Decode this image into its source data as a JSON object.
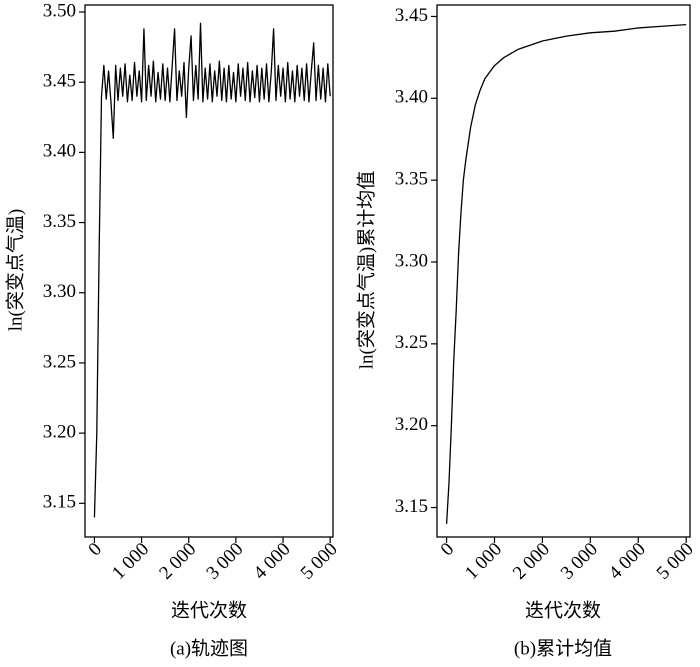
{
  "chart_data": [
    {
      "type": "line",
      "caption": "(a)轨迹图",
      "x_label": "迭代次数",
      "y_label": "ln(突变点气温)",
      "color": "#000000",
      "xlim": [
        -200,
        5060
      ],
      "ylim": [
        3.126,
        3.505
      ],
      "xticks": [
        0,
        {
          "value": 1000,
          "label": "1 000"
        },
        {
          "value": 2000,
          "label": "2 000"
        },
        {
          "value": 3000,
          "label": "3 000"
        },
        {
          "value": 4000,
          "label": "4 000"
        },
        {
          "value": 5000,
          "label": "5 000"
        }
      ],
      "yticks": [
        3.15,
        {
          "value": 3.2,
          "label": "3.20"
        },
        3.25,
        {
          "value": 3.3,
          "label": "3.30"
        },
        3.35,
        {
          "value": 3.4,
          "label": "3.40"
        },
        3.45,
        {
          "value": 3.5,
          "label": "3.50"
        }
      ],
      "x": [
        0,
        50,
        100,
        150,
        200,
        250,
        300,
        350,
        400,
        450,
        500,
        550,
        600,
        650,
        700,
        750,
        800,
        850,
        900,
        950,
        1000,
        1050,
        1100,
        1150,
        1200,
        1250,
        1300,
        1350,
        1400,
        1450,
        1500,
        1550,
        1600,
        1650,
        1700,
        1750,
        1800,
        1850,
        1900,
        1950,
        2000,
        2050,
        2100,
        2150,
        2200,
        2250,
        2300,
        2350,
        2400,
        2450,
        2500,
        2550,
        2600,
        2650,
        2700,
        2750,
        2800,
        2850,
        2900,
        2950,
        3000,
        3050,
        3100,
        3150,
        3200,
        3250,
        3300,
        3350,
        3400,
        3450,
        3500,
        3550,
        3600,
        3650,
        3700,
        3750,
        3800,
        3850,
        3900,
        3950,
        4000,
        4050,
        4100,
        4150,
        4200,
        4250,
        4300,
        4350,
        4400,
        4450,
        4500,
        4550,
        4600,
        4650,
        4700,
        4750,
        4800,
        4850,
        4900,
        4950,
        5000
      ],
      "values": [
        3.14,
        3.2,
        3.33,
        3.44,
        3.462,
        3.438,
        3.458,
        3.436,
        3.41,
        3.462,
        3.437,
        3.46,
        3.44,
        3.463,
        3.436,
        3.455,
        3.437,
        3.464,
        3.44,
        3.458,
        3.436,
        3.488,
        3.437,
        3.462,
        3.44,
        3.465,
        3.436,
        3.457,
        3.438,
        3.463,
        3.437,
        3.46,
        3.436,
        3.462,
        3.488,
        3.437,
        3.458,
        3.44,
        3.464,
        3.425,
        3.46,
        3.483,
        3.437,
        3.462,
        3.438,
        3.492,
        3.436,
        3.46,
        3.438,
        3.463,
        3.436,
        3.458,
        3.44,
        3.465,
        3.437,
        3.46,
        3.436,
        3.462,
        3.438,
        3.457,
        3.436,
        3.463,
        3.44,
        3.46,
        3.437,
        3.464,
        3.436,
        3.458,
        3.439,
        3.462,
        3.436,
        3.46,
        3.438,
        3.463,
        3.436,
        3.457,
        3.488,
        3.437,
        3.462,
        3.44,
        3.46,
        3.436,
        3.464,
        3.438,
        3.458,
        3.436,
        3.462,
        3.44,
        3.46,
        3.437,
        3.463,
        3.436,
        3.458,
        3.478,
        3.437,
        3.462,
        3.438,
        3.46,
        3.436,
        3.463,
        3.44
      ]
    },
    {
      "type": "line",
      "caption": "(b)累计均值",
      "x_label": "迭代次数",
      "y_label": "ln(突变点气温)累计均值",
      "color": "#000000",
      "xlim": [
        -200,
        5080
      ],
      "ylim": [
        3.132,
        3.457
      ],
      "xticks": [
        0,
        {
          "value": 1000,
          "label": "1 000"
        },
        {
          "value": 2000,
          "label": "2 000"
        },
        {
          "value": 3000,
          "label": "3 000"
        },
        {
          "value": 4000,
          "label": "4 000"
        },
        {
          "value": 5000,
          "label": "5 000"
        }
      ],
      "yticks": [
        3.15,
        {
          "value": 3.2,
          "label": "3.20"
        },
        3.25,
        {
          "value": 3.3,
          "label": "3.30"
        },
        3.35,
        {
          "value": 3.4,
          "label": "3.40"
        },
        3.45
      ],
      "x": [
        0,
        50,
        100,
        150,
        200,
        250,
        300,
        350,
        400,
        500,
        600,
        700,
        800,
        1000,
        1200,
        1500,
        2000,
        2500,
        3000,
        3500,
        4000,
        4500,
        5000
      ],
      "values": [
        3.14,
        3.165,
        3.2,
        3.24,
        3.27,
        3.305,
        3.33,
        3.35,
        3.362,
        3.382,
        3.396,
        3.405,
        3.412,
        3.42,
        3.425,
        3.43,
        3.435,
        3.438,
        3.44,
        3.441,
        3.443,
        3.444,
        3.445
      ]
    }
  ]
}
